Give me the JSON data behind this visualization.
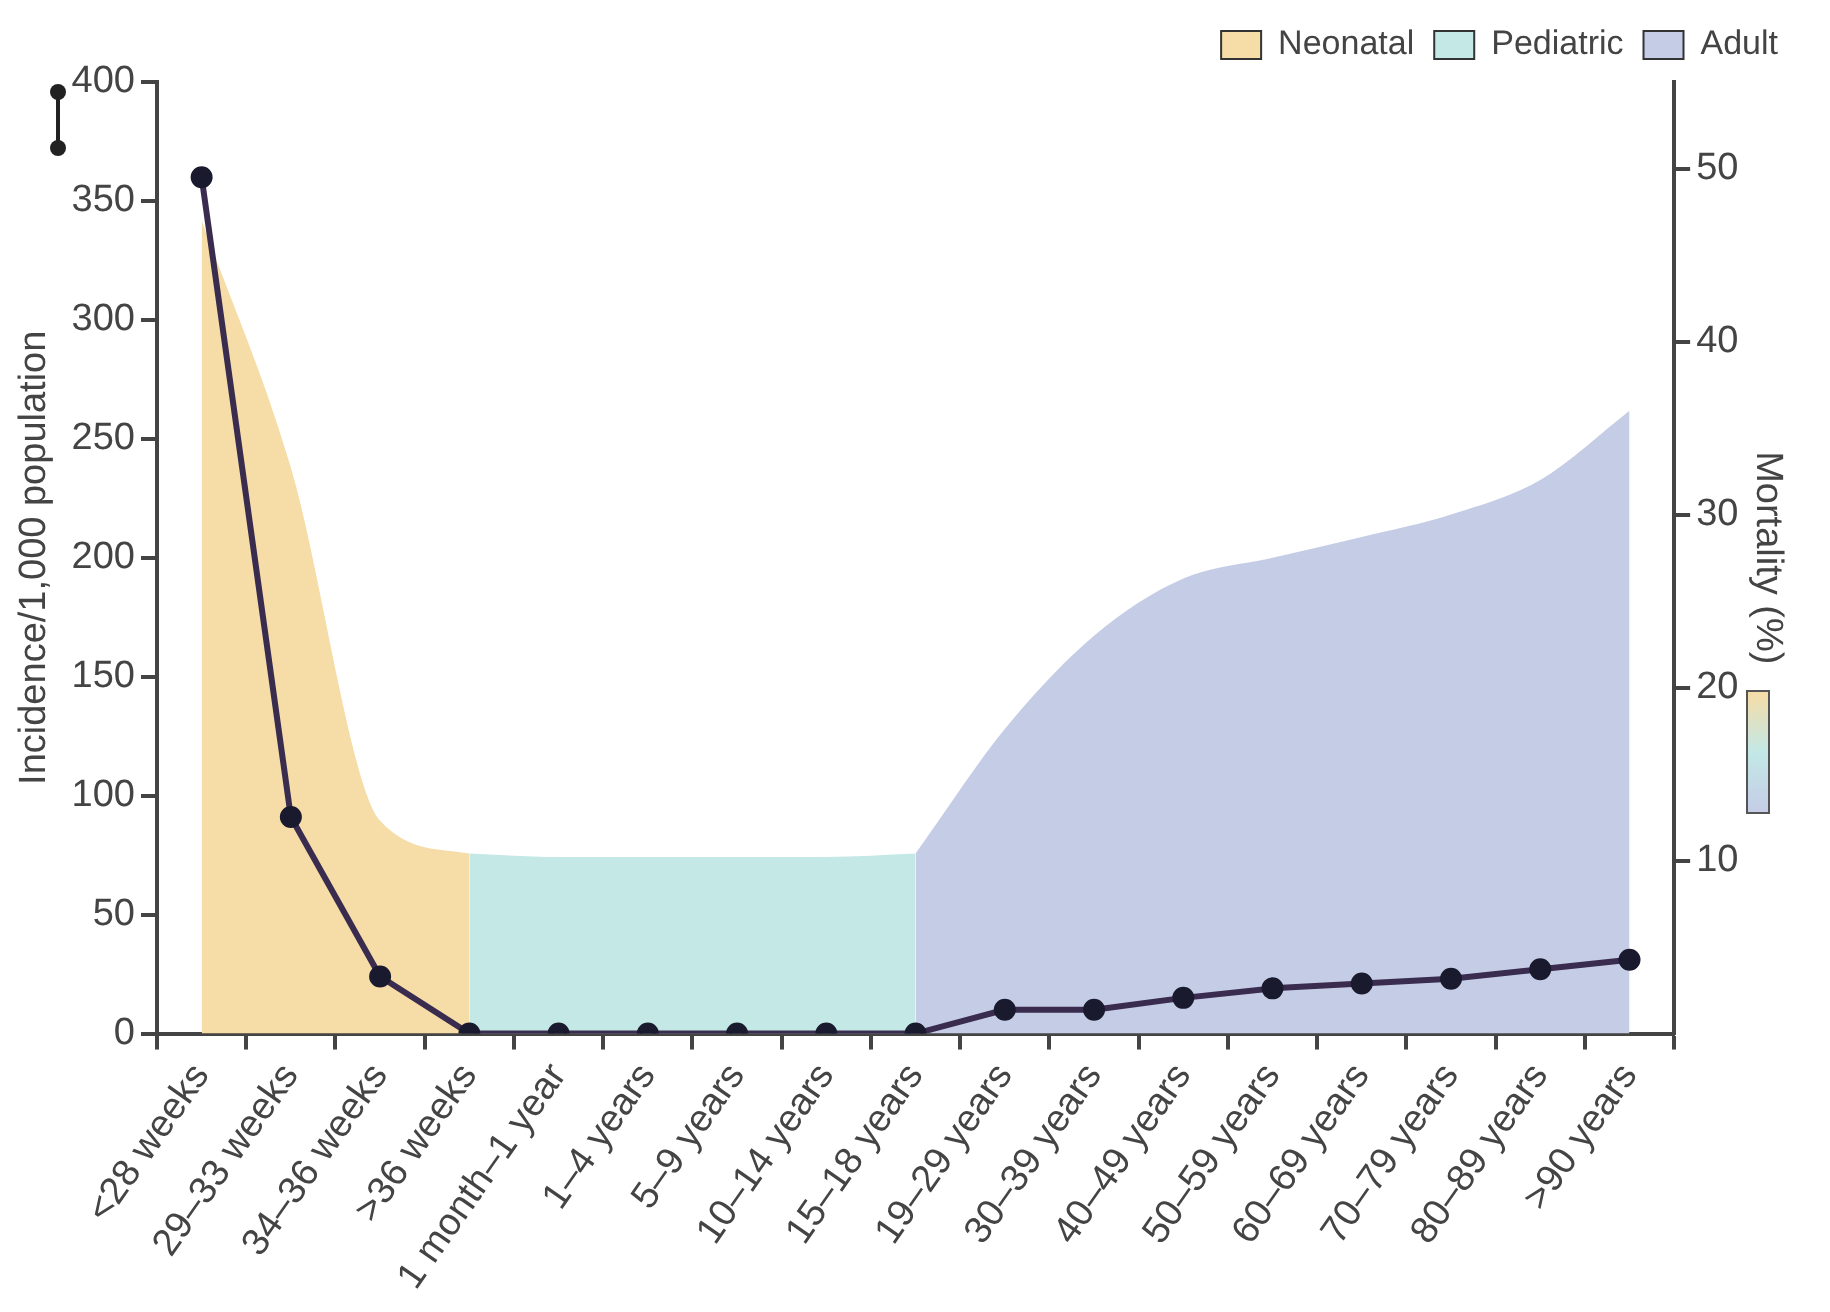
{
  "chart_data": {
    "type": "line",
    "categories": [
      "<28 weeks",
      "29–33 weeks",
      "34–36 weeks",
      ">36 weeks",
      "1 month–1 year",
      "1–4 years",
      "5–9 years",
      "10–14 years",
      "15–18 years",
      "19–29 years",
      "30–39 years",
      "40–49 years",
      "50–59 years",
      "60–69 years",
      "70–79 years",
      "80–89 years",
      ">90 years"
    ],
    "ylabel": "Incidence/1,000 population",
    "y2label": "Mortality (%)",
    "ylim": [
      0,
      400
    ],
    "yticks": [
      0,
      50,
      100,
      150,
      200,
      250,
      300,
      350,
      400
    ],
    "y2lim": [
      0,
      55
    ],
    "y2ticks": [
      10,
      20,
      30,
      40,
      50
    ],
    "grid": false,
    "legend": "top right",
    "series": [
      {
        "name": "Neonatal",
        "type": "area",
        "axis": "y2",
        "color": "#f6dca6",
        "values": [
          47,
          32.7,
          12.3,
          10.4,
          null,
          null,
          null,
          null,
          null,
          null,
          null,
          null,
          null,
          null,
          null,
          null,
          null
        ]
      },
      {
        "name": "Pediatric",
        "type": "area",
        "axis": "y2",
        "color": "#c3e8e6",
        "values": [
          null,
          null,
          null,
          10.4,
          10.2,
          10.2,
          10.2,
          10.2,
          10.4,
          null,
          null,
          null,
          null,
          null,
          null,
          null,
          null
        ]
      },
      {
        "name": "Adult",
        "type": "area",
        "axis": "y2",
        "color": "#c5cde6",
        "values": [
          null,
          null,
          null,
          null,
          null,
          null,
          null,
          null,
          10.4,
          17.6,
          23,
          26.3,
          27.5,
          28.7,
          30,
          32,
          36
        ]
      },
      {
        "color": "#3a2c4e",
        "marker": "circle",
        "line_style": "solid",
        "values": [
          360,
          91,
          24,
          0,
          0,
          0,
          0,
          0,
          0,
          10,
          10,
          15,
          19,
          21,
          23,
          27,
          31
        ]
      }
    ]
  }
}
